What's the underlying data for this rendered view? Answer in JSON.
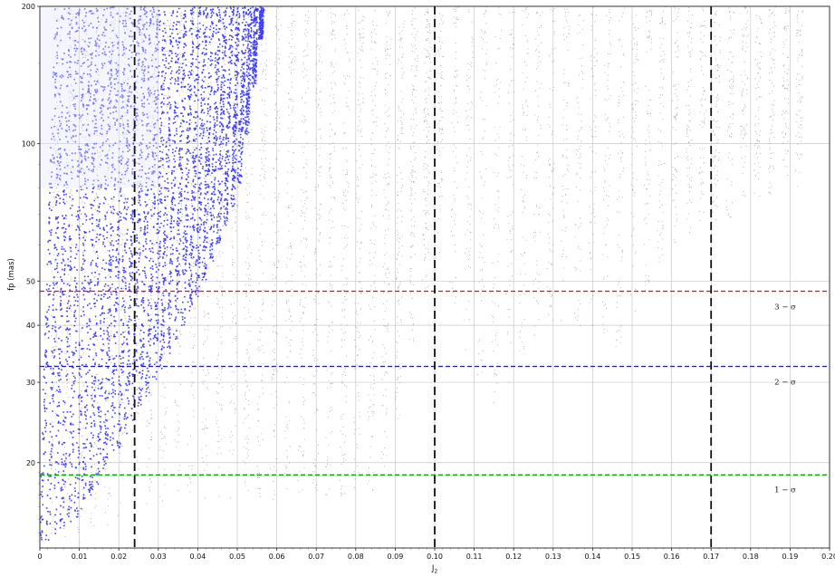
{
  "chart_data": {
    "type": "scatter",
    "title": "",
    "xlabel": "J",
    "xlabel_sub": "2",
    "ylabel": "fp (mas)",
    "xlim": [
      0,
      0.2
    ],
    "ylim": [
      13,
      200
    ],
    "yscale": "log",
    "grid": true,
    "x_ticks": [
      0,
      0.01,
      0.02,
      0.03,
      0.04,
      0.05,
      0.06,
      0.07,
      0.08,
      0.09,
      0.1,
      0.11,
      0.12,
      0.13,
      0.14,
      0.15,
      0.16,
      0.17,
      0.18,
      0.19,
      0.2
    ],
    "x_tick_labels": [
      "0",
      "0.01",
      "0.02",
      "0.03",
      "0.04",
      "0.05",
      "0.06",
      "0.07",
      "0.08",
      "0.09",
      "0.10",
      "0.11",
      "0.12",
      "0.13",
      "0.14",
      "0.15",
      "0.16",
      "0.17",
      "0.18",
      "0.19",
      "0.20"
    ],
    "y_ticks": [
      20,
      30,
      40,
      50,
      100,
      200
    ],
    "y_tick_labels": [
      "20",
      "30",
      "40",
      "50",
      "100",
      "200"
    ],
    "thresholds": [
      {
        "label": "1 − σ",
        "y": 18.8,
        "color": "#00aa00"
      },
      {
        "label": "2 − σ",
        "y": 32.5,
        "color": "#1a1aa6"
      },
      {
        "label": "3 − σ",
        "y": 47.5,
        "color": "#dd1111"
      }
    ],
    "vertical_lines": [
      0.024,
      0.1,
      0.17
    ],
    "series": [
      {
        "color": "#0000ee",
        "description_points": "blue dense stripes",
        "x_range": [
          0,
          0.057
        ],
        "stripe_spacing": 0.0018,
        "min_fp_at_x": [
          [
            0,
            13.2
          ],
          [
            0.01,
            15.5
          ],
          [
            0.02,
            21.5
          ],
          [
            0.03,
            31.5
          ],
          [
            0.04,
            47
          ],
          [
            0.05,
            78
          ],
          [
            0.057,
            200
          ]
        ]
      },
      {
        "color": "#555555",
        "description_points": "grey sparse stripes",
        "x_range": [
          0.003,
          0.195
        ],
        "stripe_spacing": 0.0035,
        "min_fp_at_x": [
          [
            0.01,
            13.2
          ],
          [
            0.03,
            16.5
          ],
          [
            0.05,
            16.5
          ],
          [
            0.07,
            16.5
          ],
          [
            0.086,
            16.5
          ],
          [
            0.1,
            60
          ],
          [
            0.113,
            25
          ],
          [
            0.13,
            42
          ],
          [
            0.146,
            35
          ],
          [
            0.16,
            60
          ],
          [
            0.19,
            80
          ]
        ]
      }
    ]
  }
}
